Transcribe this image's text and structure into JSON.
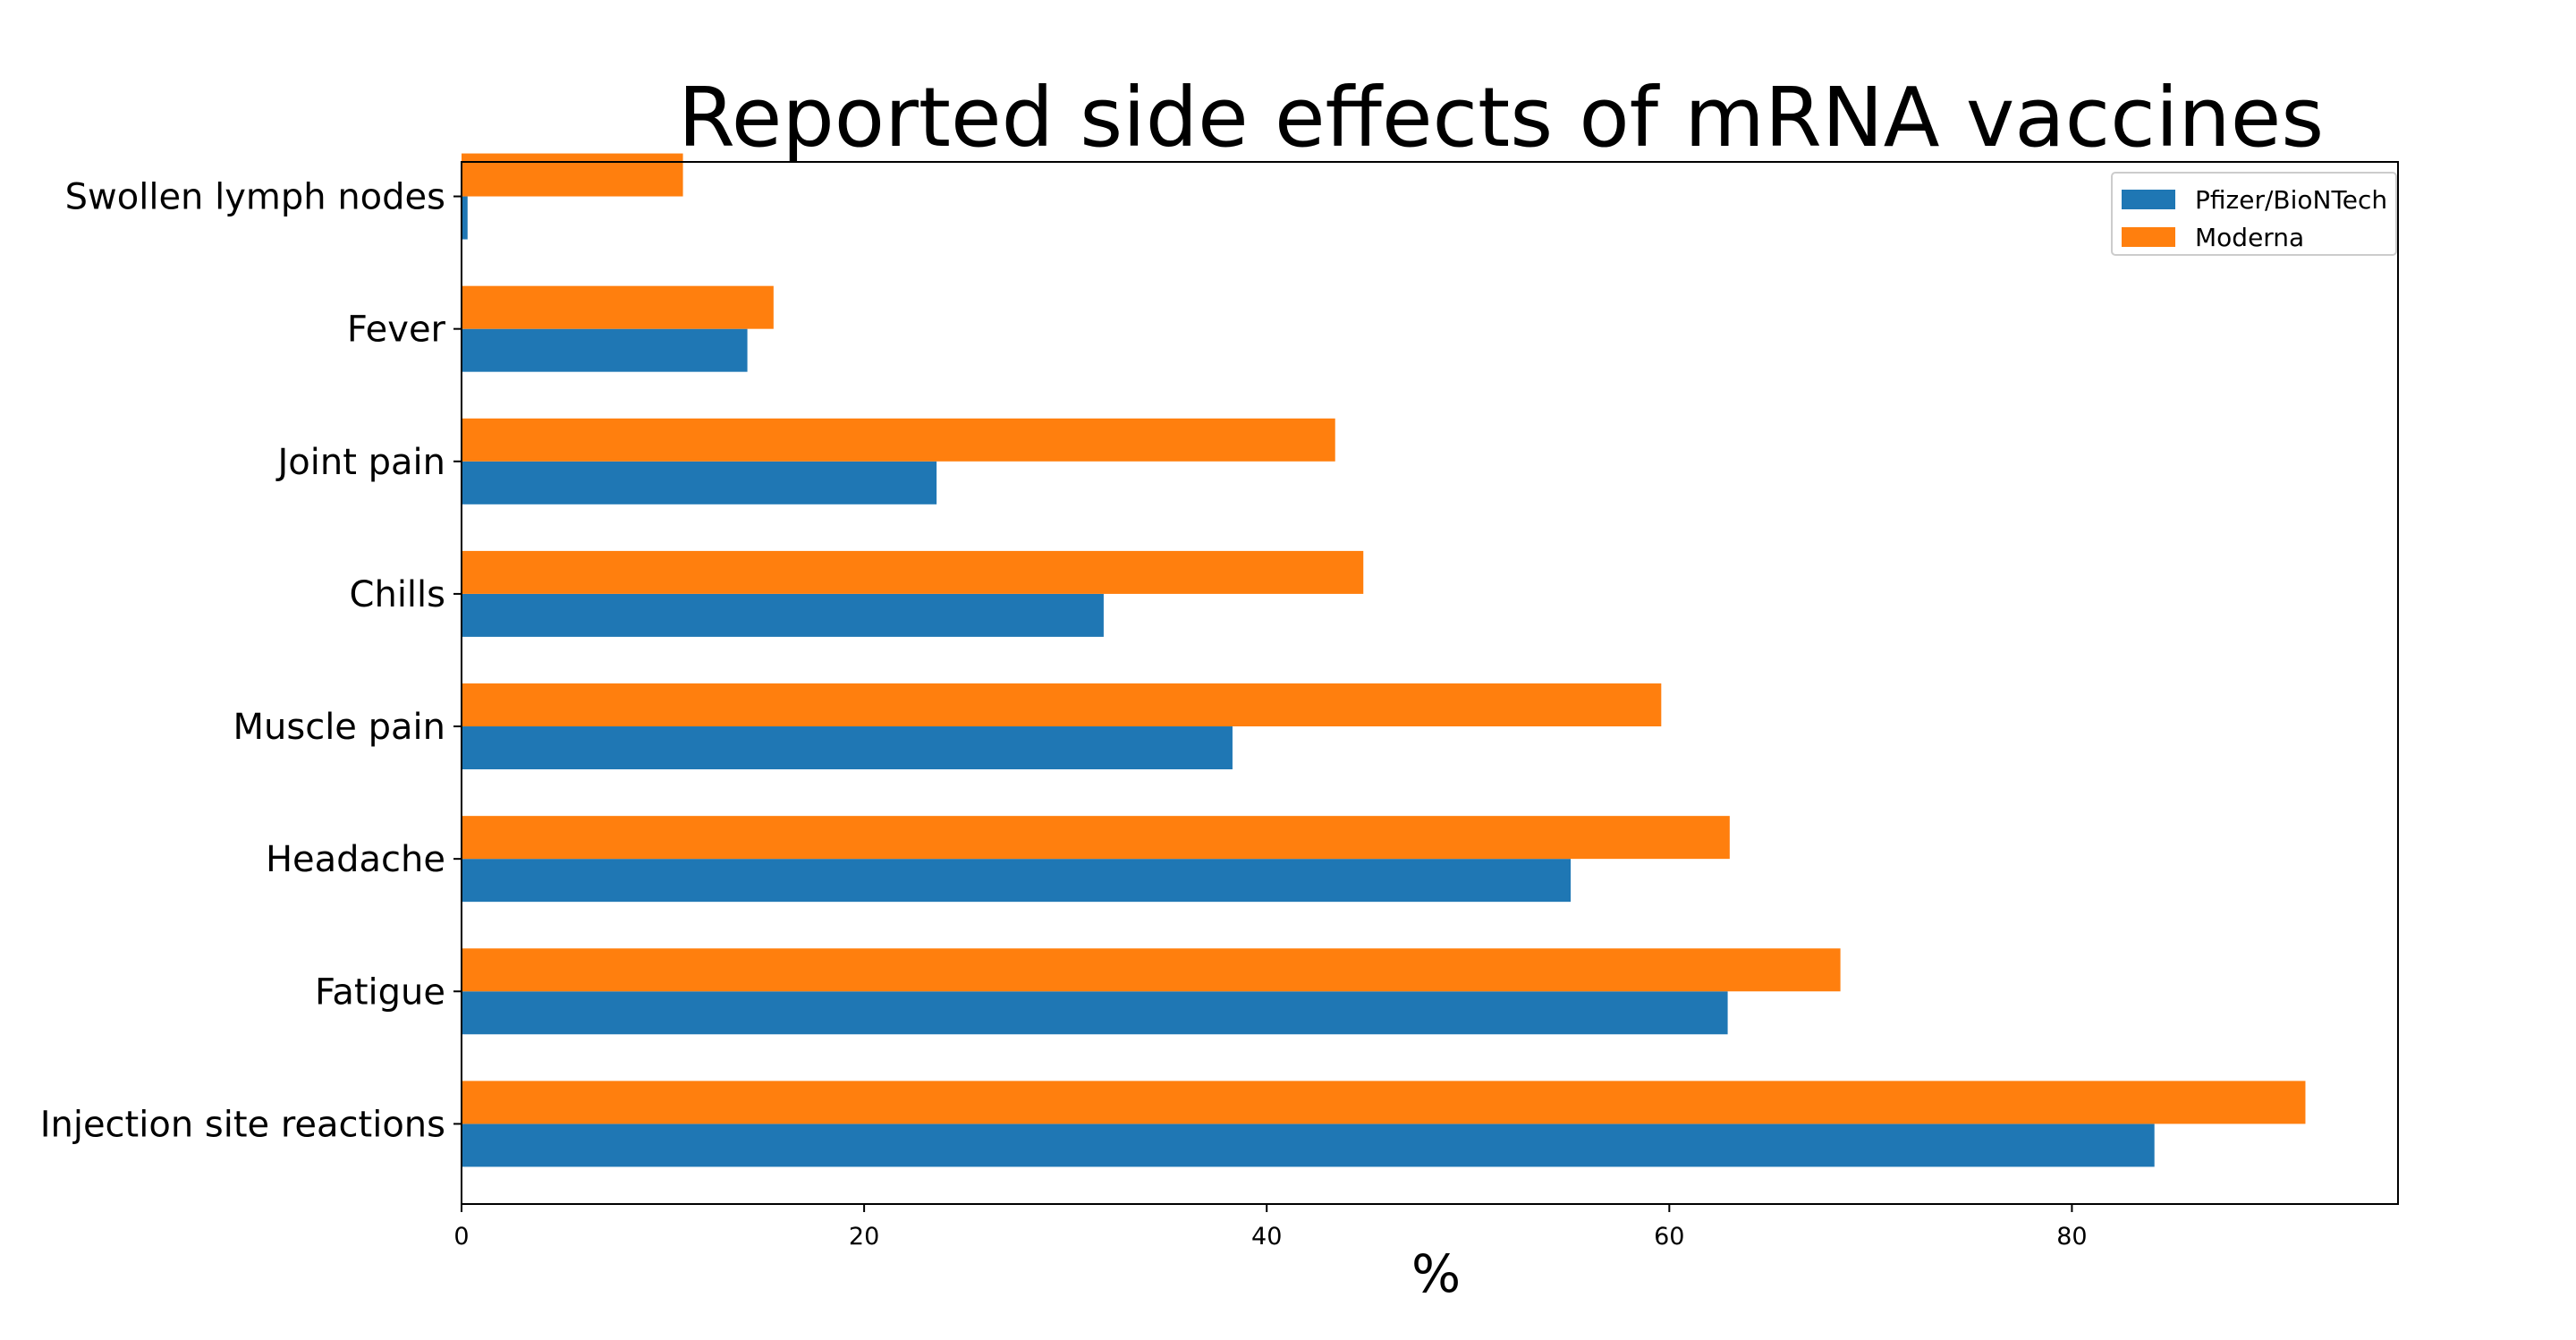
{
  "chart_data": {
    "type": "bar",
    "orientation": "horizontal",
    "title": "Reported side effects of mRNA vaccines",
    "xlabel": "%",
    "ylabel": "",
    "categories": [
      "Injection site reactions",
      "Fatigue",
      "Headache",
      "Muscle pain",
      "Chills",
      "Joint pain",
      "Fever",
      "Swollen lymph nodes"
    ],
    "series": [
      {
        "name": "Pfizer/BioNTech",
        "color": "#1f77b4",
        "values": [
          84.1,
          62.9,
          55.1,
          38.3,
          31.9,
          23.6,
          14.2,
          0.3
        ]
      },
      {
        "name": "Moderna",
        "color": "#ff7f0e",
        "values": [
          91.6,
          68.5,
          63.0,
          59.6,
          44.8,
          43.4,
          15.5,
          11.0
        ]
      }
    ],
    "xlim": [
      0,
      96.2
    ],
    "xticks": [
      0,
      20,
      40,
      60,
      80
    ],
    "grid": false,
    "legend_position": "top-right"
  }
}
